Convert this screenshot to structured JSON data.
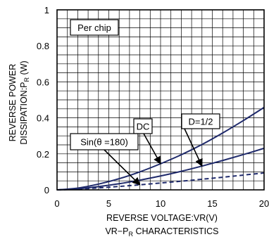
{
  "chart_data": {
    "type": "line",
    "title": "VR−P",
    "title_subscript": "R",
    "title_suffix": " CHARACTERISTICS",
    "xlabel": "REVERSE VOLTAGE:VR(V)",
    "ylabel_line1": "REVERSE POWER",
    "ylabel_line2": "DISSIPATION:P",
    "ylabel_subscript": "R",
    "ylabel_suffix": " (W)",
    "annotation": "Per chip",
    "xlim": [
      0,
      20
    ],
    "ylim": [
      0,
      1
    ],
    "x_ticks": [
      "0",
      "5",
      "10",
      "15",
      "20"
    ],
    "y_ticks": [
      "0",
      "0.2",
      "0.4",
      "0.6",
      "0.8",
      "1"
    ],
    "grid": true,
    "x": [
      0,
      2,
      4,
      6,
      8,
      10,
      12,
      14,
      16,
      18,
      20
    ],
    "series": [
      {
        "name": "DC",
        "style": "solid",
        "values": [
          0,
          0.01,
          0.032,
          0.062,
          0.1,
          0.145,
          0.195,
          0.252,
          0.316,
          0.385,
          0.458
        ]
      },
      {
        "name": "D=1/2",
        "style": "solid",
        "values": [
          0,
          0.006,
          0.018,
          0.034,
          0.054,
          0.077,
          0.103,
          0.132,
          0.163,
          0.196,
          0.231
        ]
      },
      {
        "name": "Sin(θ =180)",
        "style": "dashed",
        "values": [
          0,
          0.004,
          0.011,
          0.019,
          0.028,
          0.038,
          0.048,
          0.059,
          0.07,
          0.082,
          0.094
        ]
      }
    ],
    "callouts": [
      {
        "label": "DC",
        "target_x": 10,
        "target_y": 0.145
      },
      {
        "label": "D=1/2",
        "target_x": 14,
        "target_y": 0.132
      },
      {
        "label": "Sin(θ =180)",
        "target_x": 8,
        "target_y": 0.028
      }
    ],
    "colors": {
      "curve": "#1f2a6b",
      "grid": "#000000"
    }
  }
}
